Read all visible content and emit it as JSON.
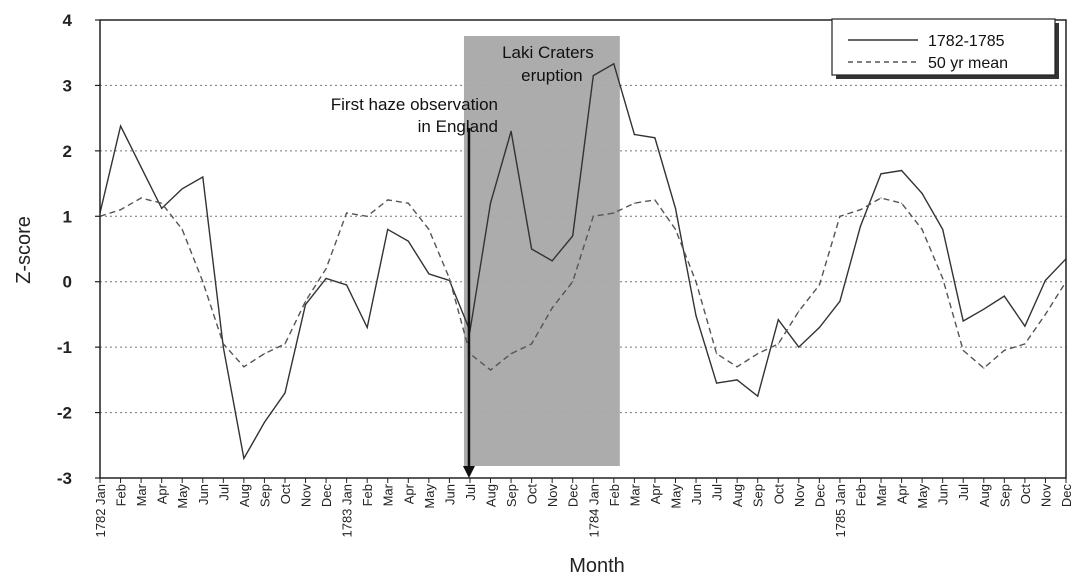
{
  "chart_data": {
    "type": "line",
    "title": "",
    "xlabel": "Month",
    "ylabel": "Z-score",
    "ylim": [
      -3,
      4
    ],
    "yticks": [
      4,
      3,
      2,
      1,
      0,
      -1,
      -2,
      -3
    ],
    "grid": "horizontal dotted",
    "legend_position": "top-right",
    "x": [
      "1782 Jan",
      "Feb",
      "Mar",
      "Apr",
      "May",
      "Jun",
      "Jul",
      "Aug",
      "Sep",
      "Oct",
      "Nov",
      "Dec",
      "1783 Jan",
      "Feb",
      "Mar",
      "Apr",
      "May",
      "Jun",
      "Jul",
      "Aug",
      "Sep",
      "Oct",
      "Nov",
      "Dec",
      "1784 Jan",
      "Feb",
      "Mar",
      "Apr",
      "May",
      "Jun",
      "Jul",
      "Aug",
      "Sep",
      "Oct",
      "Nov",
      "Dec",
      "1785 Jan",
      "Feb",
      "Mar",
      "Apr",
      "May",
      "Jun",
      "Jul",
      "Aug",
      "Sep",
      "Oct",
      "Nov",
      "Dec"
    ],
    "series": [
      {
        "name": "1782-1785",
        "style": "solid",
        "color": "#333333",
        "values": [
          1.05,
          2.38,
          1.75,
          1.12,
          1.42,
          1.6,
          -1.0,
          -2.7,
          -2.15,
          -1.7,
          -0.35,
          0.05,
          -0.05,
          -0.7,
          0.8,
          0.62,
          0.12,
          0.02,
          -0.75,
          1.2,
          2.3,
          0.5,
          0.32,
          0.7,
          3.15,
          3.33,
          2.25,
          2.2,
          1.12,
          -0.52,
          -1.55,
          -1.5,
          -1.75,
          -0.58,
          -1.0,
          -0.7,
          -0.3,
          0.85,
          1.65,
          1.7,
          1.35,
          0.8,
          -0.6,
          -0.42,
          -0.22,
          -0.68,
          0.02,
          0.35
        ]
      },
      {
        "name": "50 yr mean",
        "style": "dashed",
        "color": "#555555",
        "values": [
          1.0,
          1.1,
          1.28,
          1.2,
          0.8,
          0.0,
          -0.95,
          -1.3,
          -1.1,
          -0.95,
          -0.3,
          0.2,
          1.05,
          1.0,
          1.25,
          1.2,
          0.8,
          0.05,
          -1.1,
          -1.35,
          -1.1,
          -0.95,
          -0.4,
          0.0,
          1.0,
          1.05,
          1.2,
          1.25,
          0.8,
          0.0,
          -1.1,
          -1.3,
          -1.1,
          -0.95,
          -0.45,
          -0.05,
          1.0,
          1.1,
          1.28,
          1.2,
          0.8,
          0.05,
          -1.05,
          -1.32,
          -1.05,
          -0.95,
          -0.5,
          0.0
        ]
      }
    ],
    "shaded_region": {
      "from_index": 18,
      "to_index": 25,
      "color": "#a8a8a8"
    },
    "annotations": [
      {
        "id": "eruption",
        "text_lines": [
          "Laki Craters",
          "eruption"
        ]
      },
      {
        "id": "haze",
        "text_lines": [
          "First haze observation",
          "in England"
        ],
        "arrow_index": 18
      }
    ]
  }
}
